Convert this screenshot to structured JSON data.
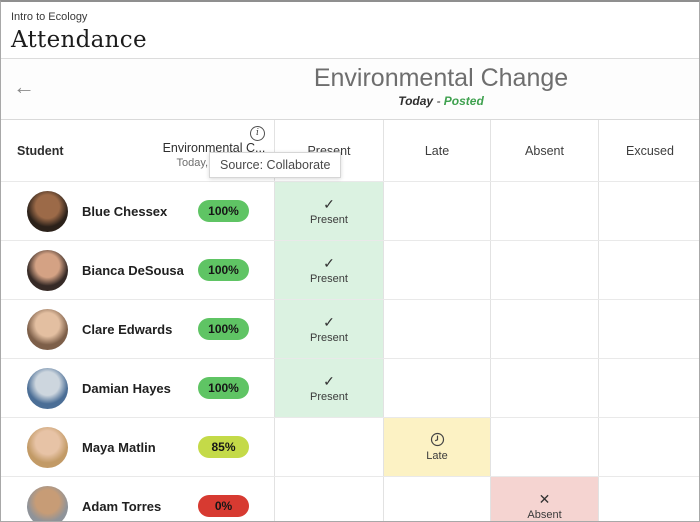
{
  "app_header": {
    "breadcrumb": "Intro to Ecology",
    "title": "Attendance"
  },
  "toolbar": {
    "back_icon": "←",
    "meeting_title": "Environmental Change",
    "meeting_date": "Today",
    "separator": " - ",
    "meeting_status": "Posted",
    "tooltip": "Source: Collaborate"
  },
  "table": {
    "student_column_header": "Student",
    "assessment": {
      "info_icon": "i",
      "title": "Environmental C...",
      "time": "Today, 9:55 AM"
    },
    "mark_columns": [
      "Present",
      "Late",
      "Absent",
      "Excused"
    ],
    "icons": {
      "check-icon": "✓",
      "x-icon": "✕"
    },
    "rows": [
      {
        "name": "Blue Chessex",
        "score": "100%",
        "score_bg": "#5fc464",
        "avatar": {
          "skin": "#9c6a48",
          "hair": "#2b211a"
        },
        "mark": {
          "column": 0,
          "label": "Present",
          "icon": "check-icon",
          "bg": "#dbf2e1"
        }
      },
      {
        "name": "Bianca DeSousa",
        "score": "100%",
        "score_bg": "#5fc464",
        "avatar": {
          "skin": "#d4a284",
          "hair": "#362a26"
        },
        "mark": {
          "column": 0,
          "label": "Present",
          "icon": "check-icon",
          "bg": "#dbf2e1"
        }
      },
      {
        "name": "Clare Edwards",
        "score": "100%",
        "score_bg": "#5fc464",
        "avatar": {
          "skin": "#e3bfa1",
          "hair": "#7d5f49"
        },
        "mark": {
          "column": 0,
          "label": "Present",
          "icon": "check-icon",
          "bg": "#dbf2e1"
        }
      },
      {
        "name": "Damian Hayes",
        "score": "100%",
        "score_bg": "#5fc464",
        "avatar": {
          "skin": "#cdd6de",
          "hair": "#4b6e96"
        },
        "mark": {
          "column": 0,
          "label": "Present",
          "icon": "check-icon",
          "bg": "#dbf2e1"
        }
      },
      {
        "name": "Maya Matlin",
        "score": "85%",
        "score_bg": "#c4da48",
        "avatar": {
          "skin": "#e7c3a6",
          "hair": "#c29a66"
        },
        "mark": {
          "column": 1,
          "label": "Late",
          "icon": "clock-icon",
          "bg": "#fcf2c4"
        }
      },
      {
        "name": "Adam Torres",
        "score": "0%",
        "score_bg": "#d73a31",
        "avatar": {
          "skin": "#c79c76",
          "hair": "#8f9399"
        },
        "mark": {
          "column": 2,
          "label": "Absent",
          "icon": "x-icon",
          "bg": "#f5d4d1"
        }
      }
    ]
  },
  "colors": {
    "present_cell": "#dbf2e1",
    "late_cell": "#fcf2c4",
    "absent_cell": "#f5d4d1",
    "score_green": "#5fc464",
    "score_lime": "#c4da48",
    "score_red": "#d73a31",
    "posted_green": "#3fa14f"
  }
}
